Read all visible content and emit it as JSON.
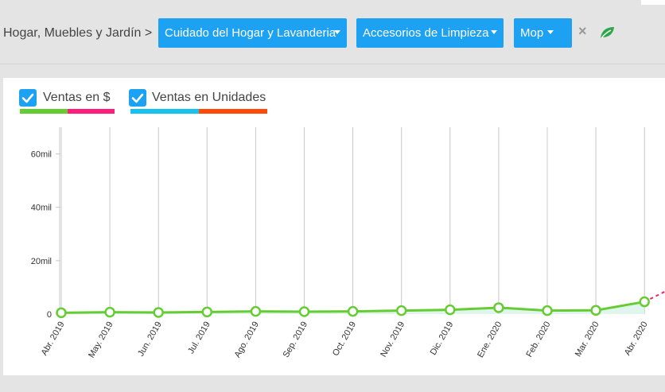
{
  "breadcrumb": {
    "root": "Hogar, Muebles y Jardín >"
  },
  "filters": [
    {
      "label": "Cuidado del Hogar y Lavanderia"
    },
    {
      "label": "Accesorios de Limpieza"
    },
    {
      "label": "Mop"
    }
  ],
  "clear_label": "×",
  "legend": [
    {
      "label": "Ventas en $",
      "checked": true,
      "colors": [
        "#66cc33",
        "#ff1f7a"
      ]
    },
    {
      "label": "Ventas en Unidades",
      "checked": true,
      "colors": [
        "#17c3ee",
        "#ff4a0a"
      ]
    }
  ],
  "chart_data": {
    "type": "line",
    "categories": [
      "Abr. 2019",
      "May. 2019",
      "Jun. 2019",
      "Jul. 2019",
      "Ago. 2019",
      "Sep. 2019",
      "Oct. 2019",
      "Nov. 2019",
      "Dic. 2019",
      "Ene. 2020",
      "Feb. 2020",
      "Mar. 2020",
      "Abr. 2020"
    ],
    "series": [
      {
        "name": "Ventas en $",
        "color": "#66cc33",
        "values": [
          500,
          700,
          600,
          800,
          1000,
          900,
          1000,
          1300,
          1600,
          2400,
          1300,
          1400,
          4600
        ]
      }
    ],
    "y_tick_labels": [
      "0",
      "20mil",
      "40mil",
      "60mil"
    ],
    "y_tick_values": [
      0,
      20000,
      40000,
      60000
    ],
    "ylim": [
      0,
      70000
    ],
    "grid": "vertical",
    "projection_color": "#e8246e"
  }
}
